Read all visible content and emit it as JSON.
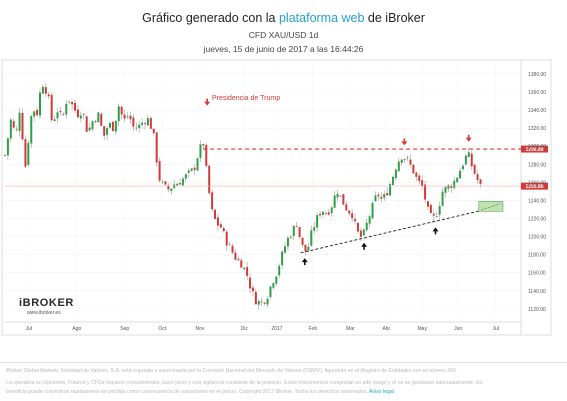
{
  "header": {
    "title_pre": "Gráfico generado con la ",
    "title_accent": "plataforma web",
    "title_post": " de iBroker",
    "subtitle": "CFD XAU/USD 1d",
    "date": "jueves, 15 de junio de 2017 a las 16:44:26"
  },
  "colors": {
    "up": "#2e9e48",
    "down": "#d23a3a",
    "accent": "#27a0c9",
    "resistance": "#d23a3a",
    "support": "#1a1a1a",
    "target_box": "#bfe3b0"
  },
  "logo": {
    "brand": "iBROKER",
    "url": "www.ibroker.es"
  },
  "annotation": {
    "trump_label": "Presidencia de Trump"
  },
  "chart_data": {
    "type": "candlestick",
    "instrument": "CFD XAU/USD",
    "timeframe": "1d",
    "x_tick_labels": [
      "Jul",
      "Ago",
      "Sep",
      "Oct",
      "Nov",
      "Dic",
      "2017",
      "Feb",
      "Mar",
      "Abr",
      "May",
      "Jun",
      "Jul"
    ],
    "y_tick_labels": [
      "1380.00",
      "1360.00",
      "1340.00",
      "1320.00",
      "1300.00",
      "1280.00",
      "1260.00",
      "1240.00",
      "1220.00",
      "1200.00",
      "1180.00",
      "1160.00",
      "1140.00",
      "1120.00"
    ],
    "ylim": [
      1111,
      1391
    ],
    "price_path": [
      {
        "t": 0,
        "p": 1290
      },
      {
        "t": 6,
        "p": 1330
      },
      {
        "t": 11,
        "p": 1310
      },
      {
        "t": 14,
        "p": 1345
      },
      {
        "t": 18,
        "p": 1305
      },
      {
        "t": 21,
        "p": 1270
      },
      {
        "t": 24,
        "p": 1320
      },
      {
        "t": 28,
        "p": 1345
      },
      {
        "t": 31,
        "p": 1330
      },
      {
        "t": 35,
        "p": 1360
      },
      {
        "t": 38,
        "p": 1370
      },
      {
        "t": 43,
        "p": 1355
      },
      {
        "t": 47,
        "p": 1325
      },
      {
        "t": 52,
        "p": 1340
      },
      {
        "t": 57,
        "p": 1330
      },
      {
        "t": 62,
        "p": 1355
      },
      {
        "t": 67,
        "p": 1345
      },
      {
        "t": 72,
        "p": 1335
      },
      {
        "t": 77,
        "p": 1340
      },
      {
        "t": 82,
        "p": 1315
      },
      {
        "t": 88,
        "p": 1330
      },
      {
        "t": 93,
        "p": 1335
      },
      {
        "t": 98,
        "p": 1310
      },
      {
        "t": 103,
        "p": 1325
      },
      {
        "t": 108,
        "p": 1320
      },
      {
        "t": 113,
        "p": 1345
      },
      {
        "t": 118,
        "p": 1328
      },
      {
        "t": 123,
        "p": 1335
      },
      {
        "t": 128,
        "p": 1320
      },
      {
        "t": 133,
        "p": 1322
      },
      {
        "t": 138,
        "p": 1328
      },
      {
        "t": 143,
        "p": 1330
      },
      {
        "t": 148,
        "p": 1310
      },
      {
        "t": 153,
        "p": 1265
      },
      {
        "t": 158,
        "p": 1255
      },
      {
        "t": 163,
        "p": 1252
      },
      {
        "t": 168,
        "p": 1258
      },
      {
        "t": 173,
        "p": 1260
      },
      {
        "t": 178,
        "p": 1265
      },
      {
        "t": 183,
        "p": 1270
      },
      {
        "t": 188,
        "p": 1275
      },
      {
        "t": 193,
        "p": 1295
      },
      {
        "t": 197,
        "p": 1305
      },
      {
        "t": 201,
        "p": 1265
      },
      {
        "t": 205,
        "p": 1230
      },
      {
        "t": 210,
        "p": 1215
      },
      {
        "t": 215,
        "p": 1210
      },
      {
        "t": 220,
        "p": 1195
      },
      {
        "t": 225,
        "p": 1185
      },
      {
        "t": 230,
        "p": 1175
      },
      {
        "t": 235,
        "p": 1170
      },
      {
        "t": 240,
        "p": 1160
      },
      {
        "t": 245,
        "p": 1140
      },
      {
        "t": 250,
        "p": 1128
      },
      {
        "t": 255,
        "p": 1127
      },
      {
        "t": 260,
        "p": 1132
      },
      {
        "t": 265,
        "p": 1148
      },
      {
        "t": 270,
        "p": 1160
      },
      {
        "t": 275,
        "p": 1178
      },
      {
        "t": 280,
        "p": 1195
      },
      {
        "t": 285,
        "p": 1205
      },
      {
        "t": 290,
        "p": 1215
      },
      {
        "t": 295,
        "p": 1190
      },
      {
        "t": 300,
        "p": 1182
      },
      {
        "t": 305,
        "p": 1205
      },
      {
        "t": 310,
        "p": 1220
      },
      {
        "t": 315,
        "p": 1230
      },
      {
        "t": 320,
        "p": 1225
      },
      {
        "t": 325,
        "p": 1235
      },
      {
        "t": 330,
        "p": 1252
      },
      {
        "t": 335,
        "p": 1240
      },
      {
        "t": 340,
        "p": 1230
      },
      {
        "t": 345,
        "p": 1225
      },
      {
        "t": 350,
        "p": 1205
      },
      {
        "t": 355,
        "p": 1198
      },
      {
        "t": 360,
        "p": 1215
      },
      {
        "t": 365,
        "p": 1232
      },
      {
        "t": 370,
        "p": 1248
      },
      {
        "t": 375,
        "p": 1240
      },
      {
        "t": 380,
        "p": 1250
      },
      {
        "t": 385,
        "p": 1265
      },
      {
        "t": 390,
        "p": 1282
      },
      {
        "t": 395,
        "p": 1290
      },
      {
        "t": 400,
        "p": 1284
      },
      {
        "t": 405,
        "p": 1275
      },
      {
        "t": 410,
        "p": 1262
      },
      {
        "t": 415,
        "p": 1255
      },
      {
        "t": 420,
        "p": 1230
      },
      {
        "t": 425,
        "p": 1218
      },
      {
        "t": 430,
        "p": 1228
      },
      {
        "t": 435,
        "p": 1250
      },
      {
        "t": 440,
        "p": 1255
      },
      {
        "t": 445,
        "p": 1258
      },
      {
        "t": 450,
        "p": 1268
      },
      {
        "t": 455,
        "p": 1280
      },
      {
        "t": 460,
        "p": 1293
      },
      {
        "t": 465,
        "p": 1275
      },
      {
        "t": 470,
        "p": 1262
      },
      {
        "t": 473,
        "p": 1255
      }
    ],
    "levels": {
      "resistance": {
        "value": 1296.89,
        "label": "1296.89"
      },
      "current": {
        "value": 1255.86,
        "label": "1255.86"
      }
    },
    "support_trendline": {
      "from": {
        "t": 294,
        "p": 1182
      },
      "to": {
        "t": 497,
        "p": 1235
      }
    },
    "target_box": {
      "t0": 471,
      "t1": 495,
      "p0": 1228,
      "p1": 1239
    },
    "markers_down": [
      {
        "t": 201,
        "p": 1346
      },
      {
        "t": 397,
        "p": 1302
      },
      {
        "t": 461,
        "p": 1306
      }
    ],
    "markers_up": [
      {
        "t": 298,
        "p": 1174
      },
      {
        "t": 357,
        "p": 1191
      },
      {
        "t": 428,
        "p": 1208
      }
    ]
  },
  "footer": {
    "line1": "iBroker Global Markets Sociedad de Valores, S.A. está regulada y supervisada por la Comisión Nacional del Mercado de Valores (CNMV), figurando en el Registro de Entidades con el número 260.",
    "line2": "La operativa en Opciones, Futuros y CFDs requiere conocimientos, buen juicio y una vigilancia constante de la posición. Estos instrumentos comportan un alto riesgo y el no se gestionan adecuadamente. Un",
    "line3": "beneficio puede convertirse rápidamente en pérdida como consecuencia de variaciones en el precio. Copyright 2017 iBroker. Todos los derechos reservados.",
    "legal_link": "Aviso legal"
  }
}
